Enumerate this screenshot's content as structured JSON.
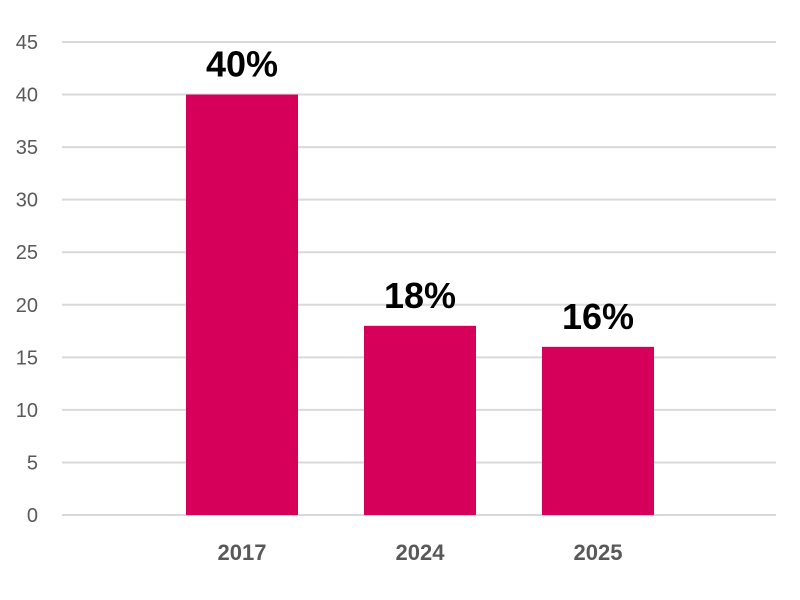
{
  "chart_data": {
    "type": "bar",
    "categories": [
      "2017",
      "2024",
      "2025"
    ],
    "values": [
      40,
      18,
      16
    ],
    "data_labels": [
      "40%",
      "18%",
      "16%"
    ],
    "ylim": [
      0,
      45
    ],
    "yticks": [
      "0",
      "5",
      "10",
      "15",
      "20",
      "25",
      "30",
      "35",
      "40",
      "45"
    ],
    "title": "",
    "xlabel": "",
    "ylabel": "",
    "grid": true,
    "legend": "none",
    "colors": {
      "bar": "#d6005a",
      "grid": "#d9d9d9",
      "tick_text": "#595959",
      "label_text": "#000000"
    }
  }
}
